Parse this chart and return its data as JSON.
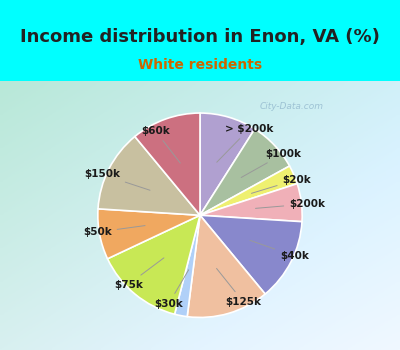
{
  "title": "Income distribution in Enon, VA (%)",
  "subtitle": "White residents",
  "background_color": "#00FFFF",
  "labels": [
    "> $200k",
    "$100k",
    "$20k",
    "$200k",
    "$40k",
    "$125k",
    "$30k",
    "$75k",
    "$50k",
    "$150k",
    "$60k"
  ],
  "values": [
    9.0,
    8.0,
    3.0,
    6.0,
    13.0,
    13.0,
    2.0,
    14.0,
    8.0,
    13.0,
    11.0
  ],
  "colors": [
    "#b0a0d0",
    "#a8c0a0",
    "#eef070",
    "#f0b0b8",
    "#8888cc",
    "#f0c0a0",
    "#b0d0f8",
    "#c8e855",
    "#f0a860",
    "#c8c0a0",
    "#cc7080"
  ],
  "startangle": 90,
  "label_fontsize": 7.5,
  "title_fontsize": 13,
  "subtitle_fontsize": 10,
  "subtitle_color": "#cc6600",
  "watermark": "City-Data.com"
}
